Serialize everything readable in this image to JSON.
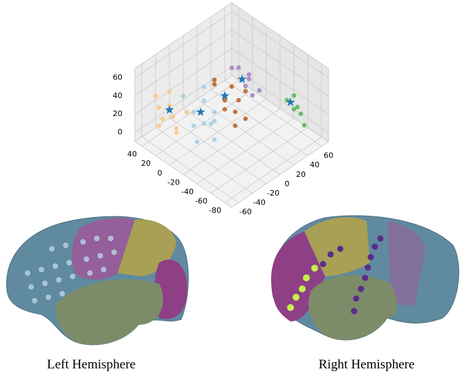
{
  "chart_data": {
    "type": "scatter3d",
    "xlim": [
      -70,
      70
    ],
    "ylim": [
      -90,
      50
    ],
    "zlim": [
      -10,
      70
    ],
    "xticks": [
      -60,
      -40,
      -20,
      0,
      20,
      40,
      60
    ],
    "yticks": [
      -80,
      -60,
      -40,
      -20,
      0,
      20,
      40
    ],
    "zticks": [
      0,
      20,
      40,
      60
    ],
    "grid": true,
    "series": [
      {
        "color": "#fdc88a",
        "marker": "circle",
        "x": [
          -60,
          -60,
          -60,
          -60,
          -55,
          -55,
          -55,
          -50,
          -50,
          -45
        ],
        "y": [
          30,
          25,
          20,
          25,
          15,
          10,
          5,
          20,
          10,
          0
        ],
        "z": [
          45,
          35,
          25,
          15,
          40,
          30,
          20,
          50,
          10,
          35
        ]
      },
      {
        "color": "#a6cee3",
        "marker": "circle",
        "x": [
          -35,
          -30,
          -25,
          -30,
          -20,
          -40,
          -25,
          -35,
          -20,
          -15,
          -30
        ],
        "y": [
          0,
          -10,
          -5,
          5,
          -15,
          10,
          -20,
          -5,
          0,
          -10,
          -20
        ],
        "z": [
          30,
          20,
          40,
          10,
          30,
          45,
          5,
          0,
          50,
          15,
          25
        ]
      },
      {
        "color": "#b8682f",
        "marker": "circle",
        "x": [
          0,
          5,
          -5,
          10,
          0,
          15,
          -10,
          5,
          20,
          10
        ],
        "y": [
          -10,
          -20,
          0,
          -10,
          -25,
          -15,
          -5,
          -5,
          -20,
          -30
        ],
        "z": [
          30,
          20,
          45,
          40,
          10,
          25,
          55,
          15,
          35,
          15
        ]
      },
      {
        "color": "#a585c9",
        "marker": "circle",
        "x": [
          30,
          40,
          45,
          35,
          50,
          40,
          55
        ],
        "y": [
          10,
          10,
          0,
          -5,
          5,
          -10,
          -5
        ],
        "z": [
          40,
          35,
          30,
          25,
          20,
          15,
          10
        ]
      },
      {
        "color": "#5cb85a",
        "marker": "circle",
        "x": [
          60,
          60,
          65,
          65,
          60,
          55
        ],
        "y": [
          -50,
          -55,
          -55,
          -60,
          -50,
          -45
        ],
        "z": [
          25,
          15,
          5,
          -5,
          10,
          20
        ]
      },
      {
        "color": "#1f77b4",
        "marker": "star",
        "x": [
          -55,
          -30,
          0,
          35,
          60
        ],
        "y": [
          15,
          -5,
          -10,
          0,
          -45
        ],
        "z": [
          35,
          30,
          35,
          30,
          15
        ]
      }
    ]
  },
  "captions": [
    "Left Hemisphere",
    "Right Hemisphere"
  ]
}
